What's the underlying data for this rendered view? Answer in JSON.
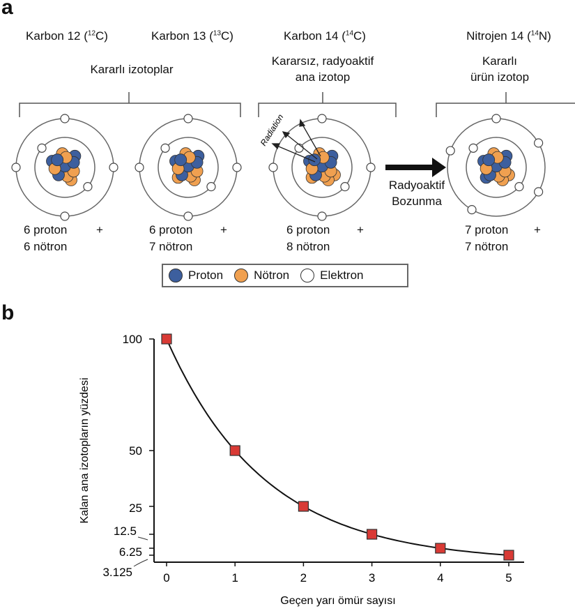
{
  "panel_a": {
    "label": "a",
    "isotopes": [
      {
        "name": "Karbon 12",
        "mass": "12",
        "symbol": "C",
        "protons": 6,
        "neutrons": 6,
        "electrons": 6,
        "line1": "6  proton",
        "line2": "6  nötron",
        "plus": "+"
      },
      {
        "name": "Karbon 13",
        "mass": "13",
        "symbol": "C",
        "protons": 6,
        "neutrons": 7,
        "electrons": 6,
        "line1": "6  proton",
        "line2": "7  nötron",
        "plus": "+"
      },
      {
        "name": "Karbon 14",
        "mass": "14",
        "symbol": "C",
        "protons": 6,
        "neutrons": 8,
        "electrons": 6,
        "line1": "6  proton",
        "line2": "8  nötron",
        "plus": "+"
      },
      {
        "name": "Nitrojen 14",
        "mass": "14",
        "symbol": "N",
        "protons": 7,
        "neutrons": 7,
        "electrons": 7,
        "line1": "7  proton",
        "line2": "7  nötron",
        "plus": "+"
      }
    ],
    "group_stable": "Kararlı izotoplar",
    "group_parent_1": "Kararsız, radyoaktif",
    "group_parent_2": "ana izotop",
    "group_product_1": "Kararlı",
    "group_product_2": "ürün izotop",
    "radiation_label": "Radiation",
    "decay_label_1": "Radyoaktif",
    "decay_label_2": "Bozunma",
    "legend": {
      "proton": "Proton",
      "neutron": "Nötron",
      "electron": "Elektron"
    },
    "colors": {
      "proton": "#3d5f9e",
      "neutron": "#f0a050",
      "electron": "#ffffff"
    }
  },
  "panel_b": {
    "label": "b"
  },
  "chart_data": {
    "type": "line",
    "x": [
      0,
      1,
      2,
      3,
      4,
      5
    ],
    "values": [
      100,
      50,
      25,
      12.5,
      6.25,
      3.125
    ],
    "xlabel": "Geçen yarı ömür sayısı",
    "ylabel": "Kalan ana izotopların yüzdesi",
    "xticks": [
      "0",
      "1",
      "2",
      "3",
      "4",
      "5"
    ],
    "yticks": [
      "100",
      "50",
      "25",
      "12.5",
      "6.25",
      "3.125"
    ],
    "ytick_values": [
      100,
      50,
      25,
      12.5,
      6.25,
      3.125
    ],
    "xlim": [
      0,
      5
    ],
    "ylim": [
      0,
      100
    ],
    "grid": false,
    "marker": "square",
    "marker_color": "#d93a35"
  }
}
